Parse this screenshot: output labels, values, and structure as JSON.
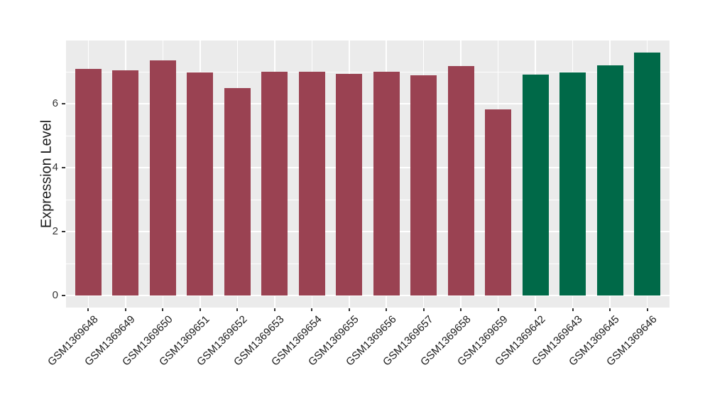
{
  "figure": {
    "background": "#ffffff",
    "panel_background": "#ebebeb",
    "grid_color": "#ffffff",
    "tick_color": "#333333",
    "text_color": "#1a1a1a"
  },
  "chart_data": {
    "type": "bar",
    "title": "",
    "xlabel": "",
    "ylabel": "Expression Level",
    "categories": [
      "GSM1369648",
      "GSM1369649",
      "GSM1369650",
      "GSM1369651",
      "GSM1369652",
      "GSM1369653",
      "GSM1369654",
      "GSM1369655",
      "GSM1369656",
      "GSM1369657",
      "GSM1369658",
      "GSM1369659",
      "GSM1369642",
      "GSM1369643",
      "GSM1369645",
      "GSM1369646"
    ],
    "values": [
      7.1,
      7.04,
      7.36,
      6.97,
      6.5,
      7.0,
      7.0,
      6.94,
      6.99,
      6.89,
      7.17,
      5.83,
      6.91,
      6.98,
      7.19,
      7.6
    ],
    "bar_colors": [
      "#9a4252",
      "#9a4252",
      "#9a4252",
      "#9a4252",
      "#9a4252",
      "#9a4252",
      "#9a4252",
      "#9a4252",
      "#9a4252",
      "#9a4252",
      "#9a4252",
      "#9a4252",
      "#006948",
      "#006948",
      "#006948",
      "#006948"
    ],
    "groups": [
      {
        "color": "#9a4252",
        "samples": [
          "GSM1369648",
          "GSM1369649",
          "GSM1369650",
          "GSM1369651",
          "GSM1369652",
          "GSM1369653",
          "GSM1369654",
          "GSM1369655",
          "GSM1369656",
          "GSM1369657",
          "GSM1369658",
          "GSM1369659"
        ]
      },
      {
        "color": "#006948",
        "samples": [
          "GSM1369642",
          "GSM1369643",
          "GSM1369645",
          "GSM1369646"
        ]
      }
    ],
    "yticks": [
      0,
      2,
      4,
      6
    ],
    "minor_yticks": [
      1,
      3,
      5,
      7
    ],
    "ylim": [
      0,
      7.98
    ],
    "grid": true,
    "legend_position": "none",
    "x_tick_label_rotation_deg": 45
  }
}
